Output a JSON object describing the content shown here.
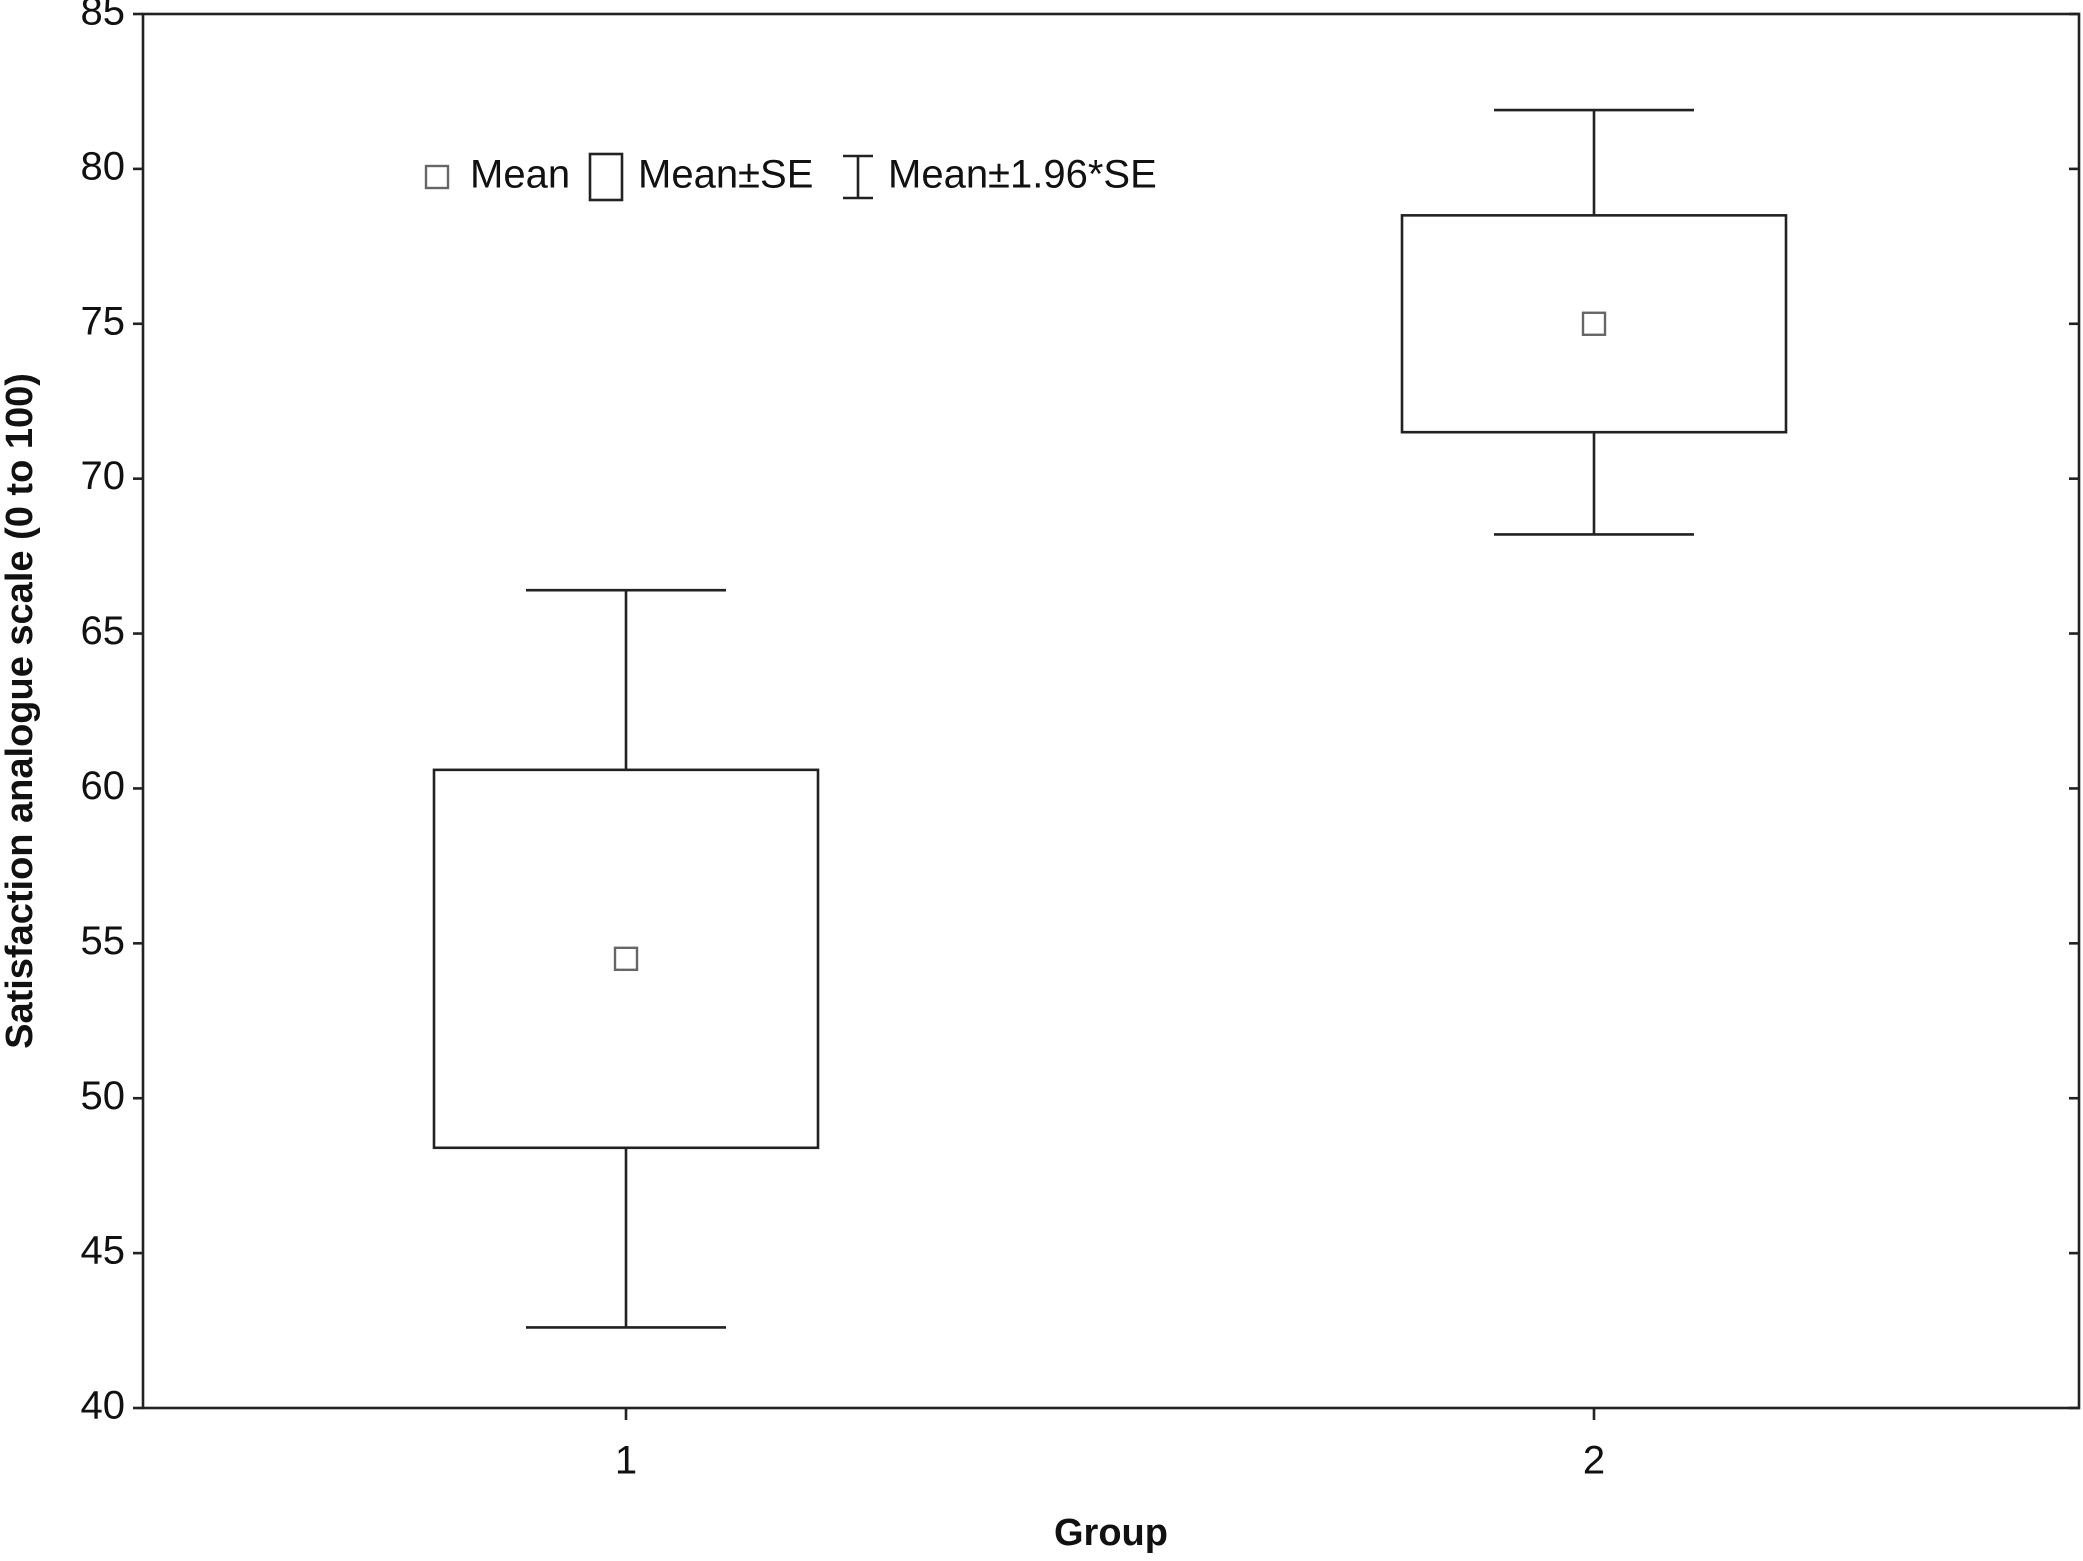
{
  "chart_data": {
    "type": "box",
    "y_label": "Satisfaction analogue scale (0 to 100)",
    "x_label": "Group",
    "categories": [
      "1",
      "2"
    ],
    "mean": [
      54.5,
      75
    ],
    "se_lower": [
      48.4,
      71.5
    ],
    "se_upper": [
      60.6,
      78.5
    ],
    "ci_lower": [
      42.6,
      68.2
    ],
    "ci_upper": [
      66.4,
      81.9
    ],
    "legend": [
      "Mean",
      "Mean±SE",
      "Mean±1.96*SE"
    ],
    "ylim": [
      40,
      85
    ],
    "yticks": [
      40,
      45,
      50,
      55,
      60,
      65,
      70,
      75,
      80,
      85
    ]
  }
}
